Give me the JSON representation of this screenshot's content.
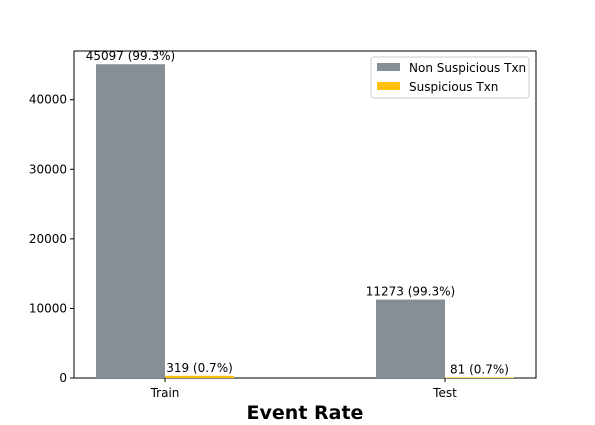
{
  "chart_data": {
    "type": "bar",
    "title": "",
    "xlabel": "Event Rate",
    "ylabel": "",
    "categories": [
      "Train",
      "Test"
    ],
    "series": [
      {
        "name": "Non Suspicious Txn",
        "values": [
          45097,
          11273
        ],
        "labels": [
          "45097 (99.3%)",
          "11273 (99.3%)"
        ],
        "color": "#878f96"
      },
      {
        "name": "Suspicious Txn",
        "values": [
          319,
          81
        ],
        "labels": [
          "319 (0.7%)",
          "81 (0.7%)"
        ],
        "color": "#ffc10e"
      }
    ],
    "ylim": [
      0,
      47000
    ],
    "yticks": [
      0,
      10000,
      20000,
      30000,
      40000
    ],
    "ytick_labels": [
      "0",
      "10000",
      "20000",
      "30000",
      "40000"
    ],
    "grid": false,
    "legend_position": "top-right"
  }
}
